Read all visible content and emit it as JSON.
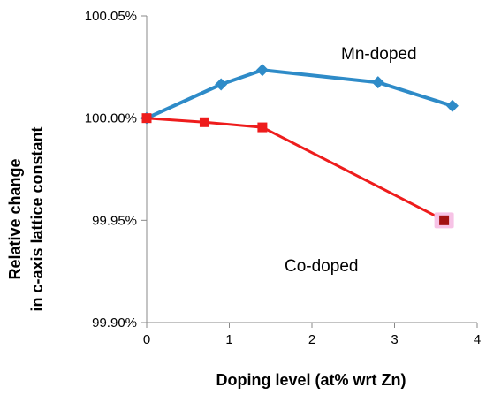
{
  "chart_data": {
    "type": "line",
    "xlabel": "Doping level (at% wrt Zn)",
    "ylabel_lines": [
      "Relative change",
      "in c-axis lattice constant"
    ],
    "xlim": [
      0,
      4
    ],
    "ylim": [
      99.9,
      100.05
    ],
    "x_ticks": [
      0,
      1,
      2,
      3,
      4
    ],
    "y_ticks": [
      99.9,
      99.95,
      100.0,
      100.05
    ],
    "x_tick_labels": [
      "0",
      "1",
      "2",
      "3",
      "4"
    ],
    "y_tick_labels": [
      "99.90%",
      "99.95%",
      "100.00%",
      "100.05%"
    ],
    "grid": false,
    "series": [
      {
        "name": "Mn-doped",
        "color": "#2e8bc8",
        "marker": "diamond",
        "x": [
          0,
          0.9,
          1.4,
          2.8,
          3.7
        ],
        "y": [
          100.0,
          100.0165,
          100.0235,
          100.0175,
          100.006
        ]
      },
      {
        "name": "Co-doped",
        "color": "#ee1c1c",
        "marker": "square",
        "x": [
          0,
          0.7,
          1.4,
          3.6
        ],
        "y": [
          100.0,
          99.998,
          99.9955,
          99.95
        ]
      }
    ]
  }
}
